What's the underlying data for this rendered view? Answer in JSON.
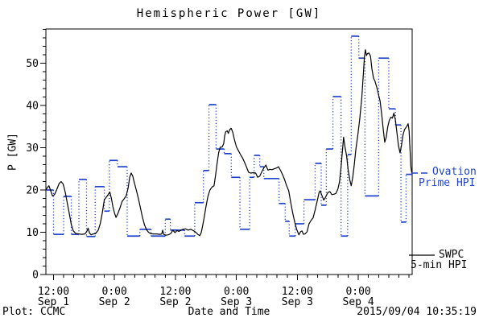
{
  "title": "Hemispheric Power [GW]",
  "footer": {
    "credit": "Plot: CCMC",
    "timestamp": "2015/09/04 10:35:19"
  },
  "legend": {
    "ovation_line1": "Ovation",
    "ovation_line2": "Prime HPI",
    "swpc_line1": "SWPC",
    "swpc_line2": "5-min HPI"
  },
  "colors": {
    "ovation_blue": "#2244cc",
    "swpc_black": "#000000",
    "background": "#ffffff"
  },
  "chart_data": {
    "type": "line",
    "title": "Hemispheric Power [GW]",
    "xlabel": "Date and Time",
    "ylabel": "P [GW]",
    "x_unit": "hours since 2015-09-01 00:00 UT",
    "xlim_hours": [
      10.5,
      82.6
    ],
    "ylim": [
      0,
      58.1
    ],
    "grid": false,
    "y_major_ticks": [
      0,
      10,
      20,
      30,
      40,
      50
    ],
    "y_minor_step": 2,
    "x_minor_step_hours": 2,
    "x_major_ticks": [
      {
        "hour": 12,
        "line1": "12:00",
        "line2": "Sep 1"
      },
      {
        "hour": 24,
        "line1": "0:00",
        "line2": "Sep 2"
      },
      {
        "hour": 36,
        "line1": "12:00",
        "line2": "Sep 2"
      },
      {
        "hour": 48,
        "line1": "0:00",
        "line2": "Sep 3"
      },
      {
        "hour": 60,
        "line1": "12:00",
        "line2": "Sep 3"
      },
      {
        "hour": 72,
        "line1": "0:00",
        "line2": "Sep 4"
      }
    ],
    "legend_position": "right-outside",
    "series": [
      {
        "name": "Ovation Prime HPI",
        "color": "#2244cc",
        "style": "dotted-step",
        "end_hour": 82.6,
        "steps": [
          [
            10.5,
            20
          ],
          [
            12,
            9.5
          ],
          [
            14,
            18.5
          ],
          [
            15.5,
            9.5
          ],
          [
            17,
            22.5
          ],
          [
            18.5,
            9
          ],
          [
            20.2,
            20.8
          ],
          [
            22,
            15
          ],
          [
            23,
            27
          ],
          [
            24.6,
            25.5
          ],
          [
            26.5,
            9.1
          ],
          [
            29,
            10.7
          ],
          [
            31.2,
            9.1
          ],
          [
            34,
            13.1
          ],
          [
            35,
            10.5
          ],
          [
            37.8,
            9.1
          ],
          [
            39.8,
            17
          ],
          [
            41.5,
            24.6
          ],
          [
            42.6,
            40.2
          ],
          [
            44,
            29.7
          ],
          [
            45.6,
            28.6
          ],
          [
            47,
            23
          ],
          [
            48.7,
            10.7
          ],
          [
            50.6,
            23
          ],
          [
            51.5,
            28.2
          ],
          [
            52.6,
            25.5
          ],
          [
            53.4,
            22.7
          ],
          [
            56.4,
            16.8
          ],
          [
            57.6,
            12.6
          ],
          [
            58.4,
            9.1
          ],
          [
            59.6,
            12
          ],
          [
            61.3,
            17.7
          ],
          [
            63.5,
            26.3
          ],
          [
            64.7,
            16.4
          ],
          [
            65.7,
            29.7
          ],
          [
            67,
            42.1
          ],
          [
            68.6,
            9.1
          ],
          [
            69.9,
            28.4
          ],
          [
            70.6,
            56.4
          ],
          [
            72.1,
            51.2
          ],
          [
            73.3,
            18.6
          ],
          [
            76,
            51.2
          ],
          [
            78,
            39.2
          ],
          [
            79.3,
            35.4
          ],
          [
            80.4,
            12.4
          ],
          [
            81.4,
            23.7
          ]
        ]
      },
      {
        "name": "SWPC 5-min HPI",
        "color": "#000000",
        "style": "solid",
        "points": [
          [
            10.5,
            20
          ],
          [
            10.8,
            20.6
          ],
          [
            11.1,
            21
          ],
          [
            11.4,
            20
          ],
          [
            11.8,
            18.6
          ],
          [
            12.2,
            18.9
          ],
          [
            12.6,
            20
          ],
          [
            13.1,
            21.5
          ],
          [
            13.5,
            22
          ],
          [
            13.9,
            21.4
          ],
          [
            14.3,
            19.5
          ],
          [
            14.7,
            17
          ],
          [
            15.1,
            14.5
          ],
          [
            15.5,
            11.8
          ],
          [
            15.9,
            10.3
          ],
          [
            16.4,
            9.7
          ],
          [
            17,
            9.6
          ],
          [
            17.6,
            9.5
          ],
          [
            18.2,
            9.6
          ],
          [
            18.6,
            10.3
          ],
          [
            18.8,
            11
          ],
          [
            19.1,
            9.8
          ],
          [
            19.4,
            9.4
          ],
          [
            19.8,
            9.6
          ],
          [
            20.3,
            9.7
          ],
          [
            20.8,
            10.5
          ],
          [
            21.2,
            12
          ],
          [
            21.6,
            14.5
          ],
          [
            22,
            17.7
          ],
          [
            22.4,
            18.3
          ],
          [
            22.8,
            19
          ],
          [
            23.1,
            19.5
          ],
          [
            23.4,
            18
          ],
          [
            23.7,
            16
          ],
          [
            24,
            14.6
          ],
          [
            24.3,
            13.5
          ],
          [
            24.7,
            14.5
          ],
          [
            25.1,
            15.8
          ],
          [
            25.5,
            17.3
          ],
          [
            25.9,
            17.9
          ],
          [
            26.3,
            18.6
          ],
          [
            26.7,
            20.5
          ],
          [
            27,
            23
          ],
          [
            27.3,
            24
          ],
          [
            27.6,
            23.3
          ],
          [
            27.9,
            21.8
          ],
          [
            28.3,
            20
          ],
          [
            28.7,
            18
          ],
          [
            29.1,
            15.8
          ],
          [
            29.5,
            13.6
          ],
          [
            29.9,
            11.8
          ],
          [
            30.3,
            10.6
          ],
          [
            30.7,
            10
          ],
          [
            31.1,
            9.7
          ],
          [
            31.7,
            9.6
          ],
          [
            32.3,
            9.6
          ],
          [
            32.9,
            9.5
          ],
          [
            33.3,
            9.6
          ],
          [
            33.5,
            10.5
          ],
          [
            33.7,
            9.5
          ],
          [
            34.1,
            9.3
          ],
          [
            34.6,
            9.4
          ],
          [
            35.1,
            9.7
          ],
          [
            35.5,
            10.5
          ],
          [
            35.9,
            9.9
          ],
          [
            36.3,
            10.4
          ],
          [
            36.7,
            10.2
          ],
          [
            37.1,
            10.5
          ],
          [
            37.5,
            10.7
          ],
          [
            38,
            10.8
          ],
          [
            38.5,
            10.5
          ],
          [
            39,
            10.7
          ],
          [
            39.5,
            10.4
          ],
          [
            40,
            10
          ],
          [
            40.4,
            9.5
          ],
          [
            40.8,
            9.2
          ],
          [
            41.1,
            10
          ],
          [
            41.4,
            11.8
          ],
          [
            41.7,
            13.8
          ],
          [
            42,
            16
          ],
          [
            42.4,
            18.5
          ],
          [
            42.8,
            20
          ],
          [
            43.2,
            20.7
          ],
          [
            43.6,
            21
          ],
          [
            43.9,
            23.5
          ],
          [
            44.2,
            26.3
          ],
          [
            44.5,
            28.8
          ],
          [
            44.8,
            30.1
          ],
          [
            45.2,
            30.2
          ],
          [
            45.5,
            31
          ],
          [
            45.7,
            32.8
          ],
          [
            45.9,
            33.8
          ],
          [
            46.2,
            34
          ],
          [
            46.4,
            33.4
          ],
          [
            46.7,
            34.3
          ],
          [
            47,
            34.6
          ],
          [
            47.3,
            33.6
          ],
          [
            47.6,
            32
          ],
          [
            48,
            30.2
          ],
          [
            48.4,
            29.3
          ],
          [
            48.8,
            28.4
          ],
          [
            49.2,
            27.6
          ],
          [
            49.6,
            26.6
          ],
          [
            50,
            25.4
          ],
          [
            50.4,
            24.2
          ],
          [
            50.8,
            24
          ],
          [
            51.3,
            24.1
          ],
          [
            51.8,
            24
          ],
          [
            52.2,
            23
          ],
          [
            52.6,
            23.3
          ],
          [
            53,
            24.3
          ],
          [
            53.4,
            25.2
          ],
          [
            53.8,
            25.9
          ],
          [
            54.2,
            24.7
          ],
          [
            54.6,
            24.9
          ],
          [
            55,
            24.8
          ],
          [
            55.4,
            25
          ],
          [
            55.9,
            25.2
          ],
          [
            56.3,
            25.5
          ],
          [
            56.7,
            24.6
          ],
          [
            57.1,
            23.6
          ],
          [
            57.5,
            22.4
          ],
          [
            57.9,
            21
          ],
          [
            58.3,
            19.8
          ],
          [
            58.7,
            17
          ],
          [
            59.1,
            14.5
          ],
          [
            59.5,
            12.3
          ],
          [
            59.9,
            10.6
          ],
          [
            60.3,
            9.4
          ],
          [
            60.6,
            10.1
          ],
          [
            60.9,
            10.3
          ],
          [
            61.2,
            9.5
          ],
          [
            61.5,
            9.6
          ],
          [
            61.9,
            10.1
          ],
          [
            62.3,
            12
          ],
          [
            62.7,
            12.8
          ],
          [
            63.1,
            13.4
          ],
          [
            63.5,
            15.3
          ],
          [
            63.9,
            17.4
          ],
          [
            64.3,
            19.5
          ],
          [
            64.5,
            19.8
          ],
          [
            64.8,
            18.8
          ],
          [
            65.2,
            17.6
          ],
          [
            65.6,
            18.4
          ],
          [
            66,
            19.4
          ],
          [
            66.4,
            19.6
          ],
          [
            66.8,
            18.9
          ],
          [
            67.2,
            19
          ],
          [
            67.6,
            19.2
          ],
          [
            68,
            20.3
          ],
          [
            68.3,
            22
          ],
          [
            68.6,
            25.5
          ],
          [
            68.9,
            29.5
          ],
          [
            69.1,
            32.5
          ],
          [
            69.4,
            30
          ],
          [
            69.7,
            28
          ],
          [
            70,
            24.8
          ],
          [
            70.3,
            22.5
          ],
          [
            70.6,
            21
          ],
          [
            70.9,
            23
          ],
          [
            71.2,
            26
          ],
          [
            71.5,
            29.5
          ],
          [
            71.9,
            33
          ],
          [
            72.3,
            37
          ],
          [
            72.7,
            42
          ],
          [
            73,
            47.5
          ],
          [
            73.2,
            51.5
          ],
          [
            73.4,
            53.2
          ],
          [
            73.6,
            51.8
          ],
          [
            73.8,
            52.3
          ],
          [
            74.1,
            52.4
          ],
          [
            74.4,
            51.6
          ],
          [
            74.7,
            48.5
          ],
          [
            75,
            46.5
          ],
          [
            75.3,
            45.7
          ],
          [
            75.7,
            44
          ],
          [
            76,
            42.5
          ],
          [
            76.3,
            41
          ],
          [
            76.6,
            38
          ],
          [
            76.9,
            34.5
          ],
          [
            77.2,
            31.3
          ],
          [
            77.5,
            32.5
          ],
          [
            77.8,
            35
          ],
          [
            78.1,
            36.5
          ],
          [
            78.4,
            37.2
          ],
          [
            78.7,
            37
          ],
          [
            79,
            38.2
          ],
          [
            79.3,
            36.5
          ],
          [
            79.6,
            33.5
          ],
          [
            79.9,
            30.5
          ],
          [
            80.2,
            28.8
          ],
          [
            80.5,
            30.5
          ],
          [
            80.8,
            33
          ],
          [
            81.1,
            34.3
          ],
          [
            81.5,
            35
          ],
          [
            81.8,
            35.7
          ],
          [
            82,
            34
          ],
          [
            82.2,
            29
          ],
          [
            82.35,
            25.5
          ],
          [
            82.55,
            23.8
          ]
        ]
      }
    ]
  }
}
